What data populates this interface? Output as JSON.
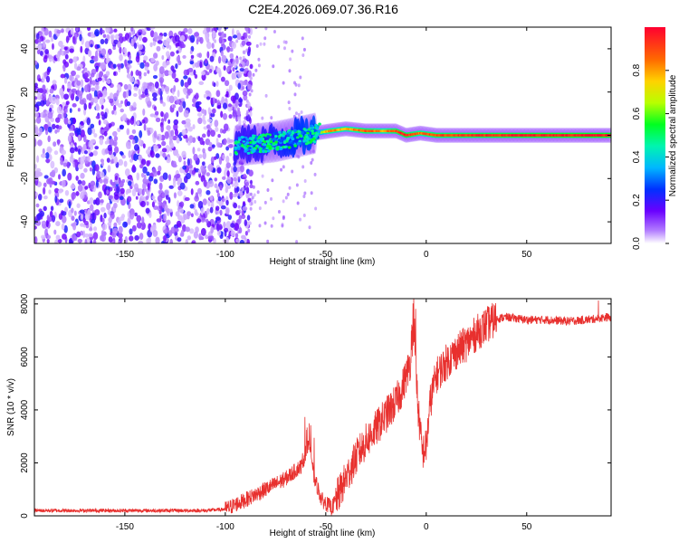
{
  "title": "C2E4.2026.069.07.36.R16",
  "chart_data": [
    {
      "type": "heatmap",
      "name": "spectrogram",
      "xlabel": "Height of straight line (km)",
      "ylabel": "Frequency (Hz)",
      "xlim": [
        -195,
        92
      ],
      "ylim": [
        -50,
        50
      ],
      "xticks": [
        -150,
        -100,
        -50,
        0,
        50
      ],
      "yticks": [
        -40,
        -20,
        0,
        20,
        40
      ],
      "noise_region": {
        "x_from": -195,
        "x_to": -95,
        "freq_from": -50,
        "freq_to": 50
      },
      "ridge": [
        {
          "x": -95,
          "freq": -5,
          "amp": 0.25
        },
        {
          "x": -85,
          "freq": -4,
          "amp": 0.35
        },
        {
          "x": -75,
          "freq": -3,
          "amp": 0.4
        },
        {
          "x": -65,
          "freq": -1,
          "amp": 0.45
        },
        {
          "x": -55,
          "freq": 1,
          "amp": 0.5
        },
        {
          "x": -48,
          "freq": 2,
          "amp": 0.85
        },
        {
          "x": -40,
          "freq": 3,
          "amp": 0.75
        },
        {
          "x": -30,
          "freq": 2,
          "amp": 0.9
        },
        {
          "x": -22,
          "freq": 2,
          "amp": 0.8
        },
        {
          "x": -15,
          "freq": 2,
          "amp": 0.9
        },
        {
          "x": -10,
          "freq": 0,
          "amp": 0.95
        },
        {
          "x": -3,
          "freq": 1,
          "amp": 0.85
        },
        {
          "x": 5,
          "freq": 0,
          "amp": 0.9
        },
        {
          "x": 20,
          "freq": 0,
          "amp": 0.92
        },
        {
          "x": 40,
          "freq": 0,
          "amp": 0.95
        },
        {
          "x": 60,
          "freq": 0,
          "amp": 0.97
        },
        {
          "x": 80,
          "freq": 0,
          "amp": 0.98
        },
        {
          "x": 92,
          "freq": 0,
          "amp": 0.98
        }
      ]
    },
    {
      "type": "line",
      "name": "snr",
      "xlabel": "Height of straight line (km)",
      "ylabel": "SNR (10 * v/v)",
      "xlim": [
        -195,
        92
      ],
      "ylim": [
        0,
        8200
      ],
      "xticks": [
        -150,
        -100,
        -50,
        0,
        50
      ],
      "yticks": [
        0,
        2000,
        4000,
        6000,
        8000
      ],
      "series": [
        {
          "name": "SNR",
          "color": "#e8302e",
          "x": [
            -195,
            -150,
            -110,
            -100,
            -90,
            -80,
            -70,
            -62,
            -58,
            -56,
            -52,
            -47,
            -45,
            -40,
            -35,
            -30,
            -25,
            -20,
            -15,
            -12,
            -8,
            -6,
            -4,
            -2,
            0,
            2,
            5,
            10,
            15,
            20,
            25,
            30,
            35,
            40,
            50,
            60,
            70,
            80,
            85,
            90,
            92
          ],
          "y": [
            200,
            200,
            200,
            250,
            600,
            1000,
            1400,
            1900,
            2800,
            1500,
            600,
            300,
            600,
            1400,
            2200,
            2800,
            3300,
            3800,
            4300,
            4800,
            5800,
            6700,
            4000,
            2400,
            2600,
            4300,
            5300,
            5800,
            6200,
            6500,
            6900,
            7200,
            7450,
            7500,
            7400,
            7400,
            7350,
            7400,
            7450,
            7500,
            7450
          ]
        }
      ]
    }
  ],
  "colorbar": {
    "label": "Normalized spectral amplitude",
    "range": [
      0,
      1
    ],
    "ticks": [
      "0.0",
      "0.2",
      "0.4",
      "0.6",
      "0.8"
    ],
    "stops": [
      {
        "v": 0.0,
        "color": "#ffffff"
      },
      {
        "v": 0.06,
        "color": "#b27cff"
      },
      {
        "v": 0.15,
        "color": "#6a00ff"
      },
      {
        "v": 0.25,
        "color": "#0030ff"
      },
      {
        "v": 0.35,
        "color": "#00b7ff"
      },
      {
        "v": 0.45,
        "color": "#00f5b0"
      },
      {
        "v": 0.55,
        "color": "#00ff20"
      },
      {
        "v": 0.65,
        "color": "#b8ff00"
      },
      {
        "v": 0.75,
        "color": "#ffd200"
      },
      {
        "v": 0.85,
        "color": "#ff6a00"
      },
      {
        "v": 1.0,
        "color": "#ff0030"
      }
    ]
  }
}
